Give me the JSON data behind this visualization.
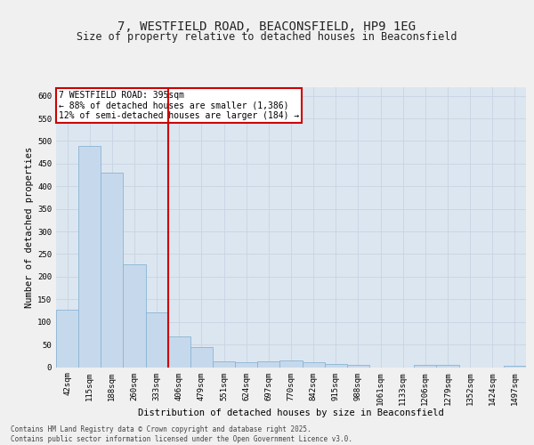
{
  "title_line1": "7, WESTFIELD ROAD, BEACONSFIELD, HP9 1EG",
  "title_line2": "Size of property relative to detached houses in Beaconsfield",
  "xlabel": "Distribution of detached houses by size in Beaconsfield",
  "ylabel": "Number of detached properties",
  "categories": [
    "42sqm",
    "115sqm",
    "188sqm",
    "260sqm",
    "333sqm",
    "406sqm",
    "479sqm",
    "551sqm",
    "624sqm",
    "697sqm",
    "770sqm",
    "842sqm",
    "915sqm",
    "988sqm",
    "1061sqm",
    "1133sqm",
    "1206sqm",
    "1279sqm",
    "1352sqm",
    "1424sqm",
    "1497sqm"
  ],
  "values": [
    127,
    490,
    430,
    228,
    122,
    67,
    45,
    12,
    11,
    13,
    15,
    10,
    6,
    5,
    0,
    0,
    5,
    5,
    0,
    0,
    3
  ],
  "bar_color": "#c6d9ec",
  "bar_edge_color": "#89b4d4",
  "vline_color": "#cc0000",
  "annotation_text": "7 WESTFIELD ROAD: 395sqm\n← 88% of detached houses are smaller (1,386)\n12% of semi-detached houses are larger (184) →",
  "annotation_box_color": "#ffffff",
  "annotation_box_edge": "#cc0000",
  "ylim": [
    0,
    620
  ],
  "yticks": [
    0,
    50,
    100,
    150,
    200,
    250,
    300,
    350,
    400,
    450,
    500,
    550,
    600
  ],
  "grid_color": "#c8d4e4",
  "bg_color": "#dce6f0",
  "fig_bg_color": "#f0f0f0",
  "footer": "Contains HM Land Registry data © Crown copyright and database right 2025.\nContains public sector information licensed under the Open Government Licence v3.0.",
  "title_fontsize": 10,
  "subtitle_fontsize": 8.5,
  "tick_fontsize": 6.5,
  "label_fontsize": 7.5,
  "annotation_fontsize": 7,
  "footer_fontsize": 5.5
}
